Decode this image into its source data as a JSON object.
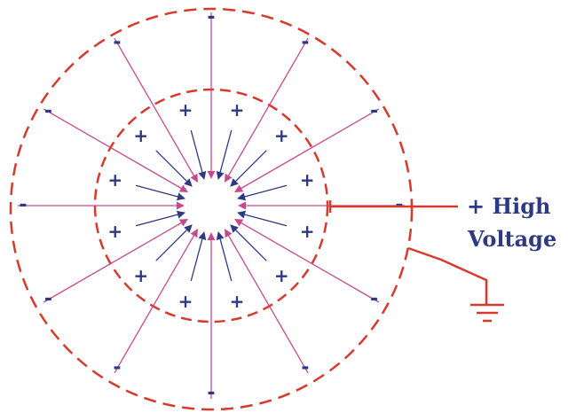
{
  "colors": {
    "ring": "#d63a2c",
    "inner_charge": "#2d3a83",
    "outer_charge": "#c5498f",
    "wire": "#d63a2c",
    "label": "#2d3a83"
  },
  "labels": {
    "inner_charge_sign": "+",
    "outer_charge_sign": "-",
    "high_voltage_line1": "+ High",
    "high_voltage_line2": "Voltage"
  },
  "icons": {
    "ground": "ground-symbol-icon"
  },
  "inner_charge_count": 12,
  "outer_charge_count": 12
}
